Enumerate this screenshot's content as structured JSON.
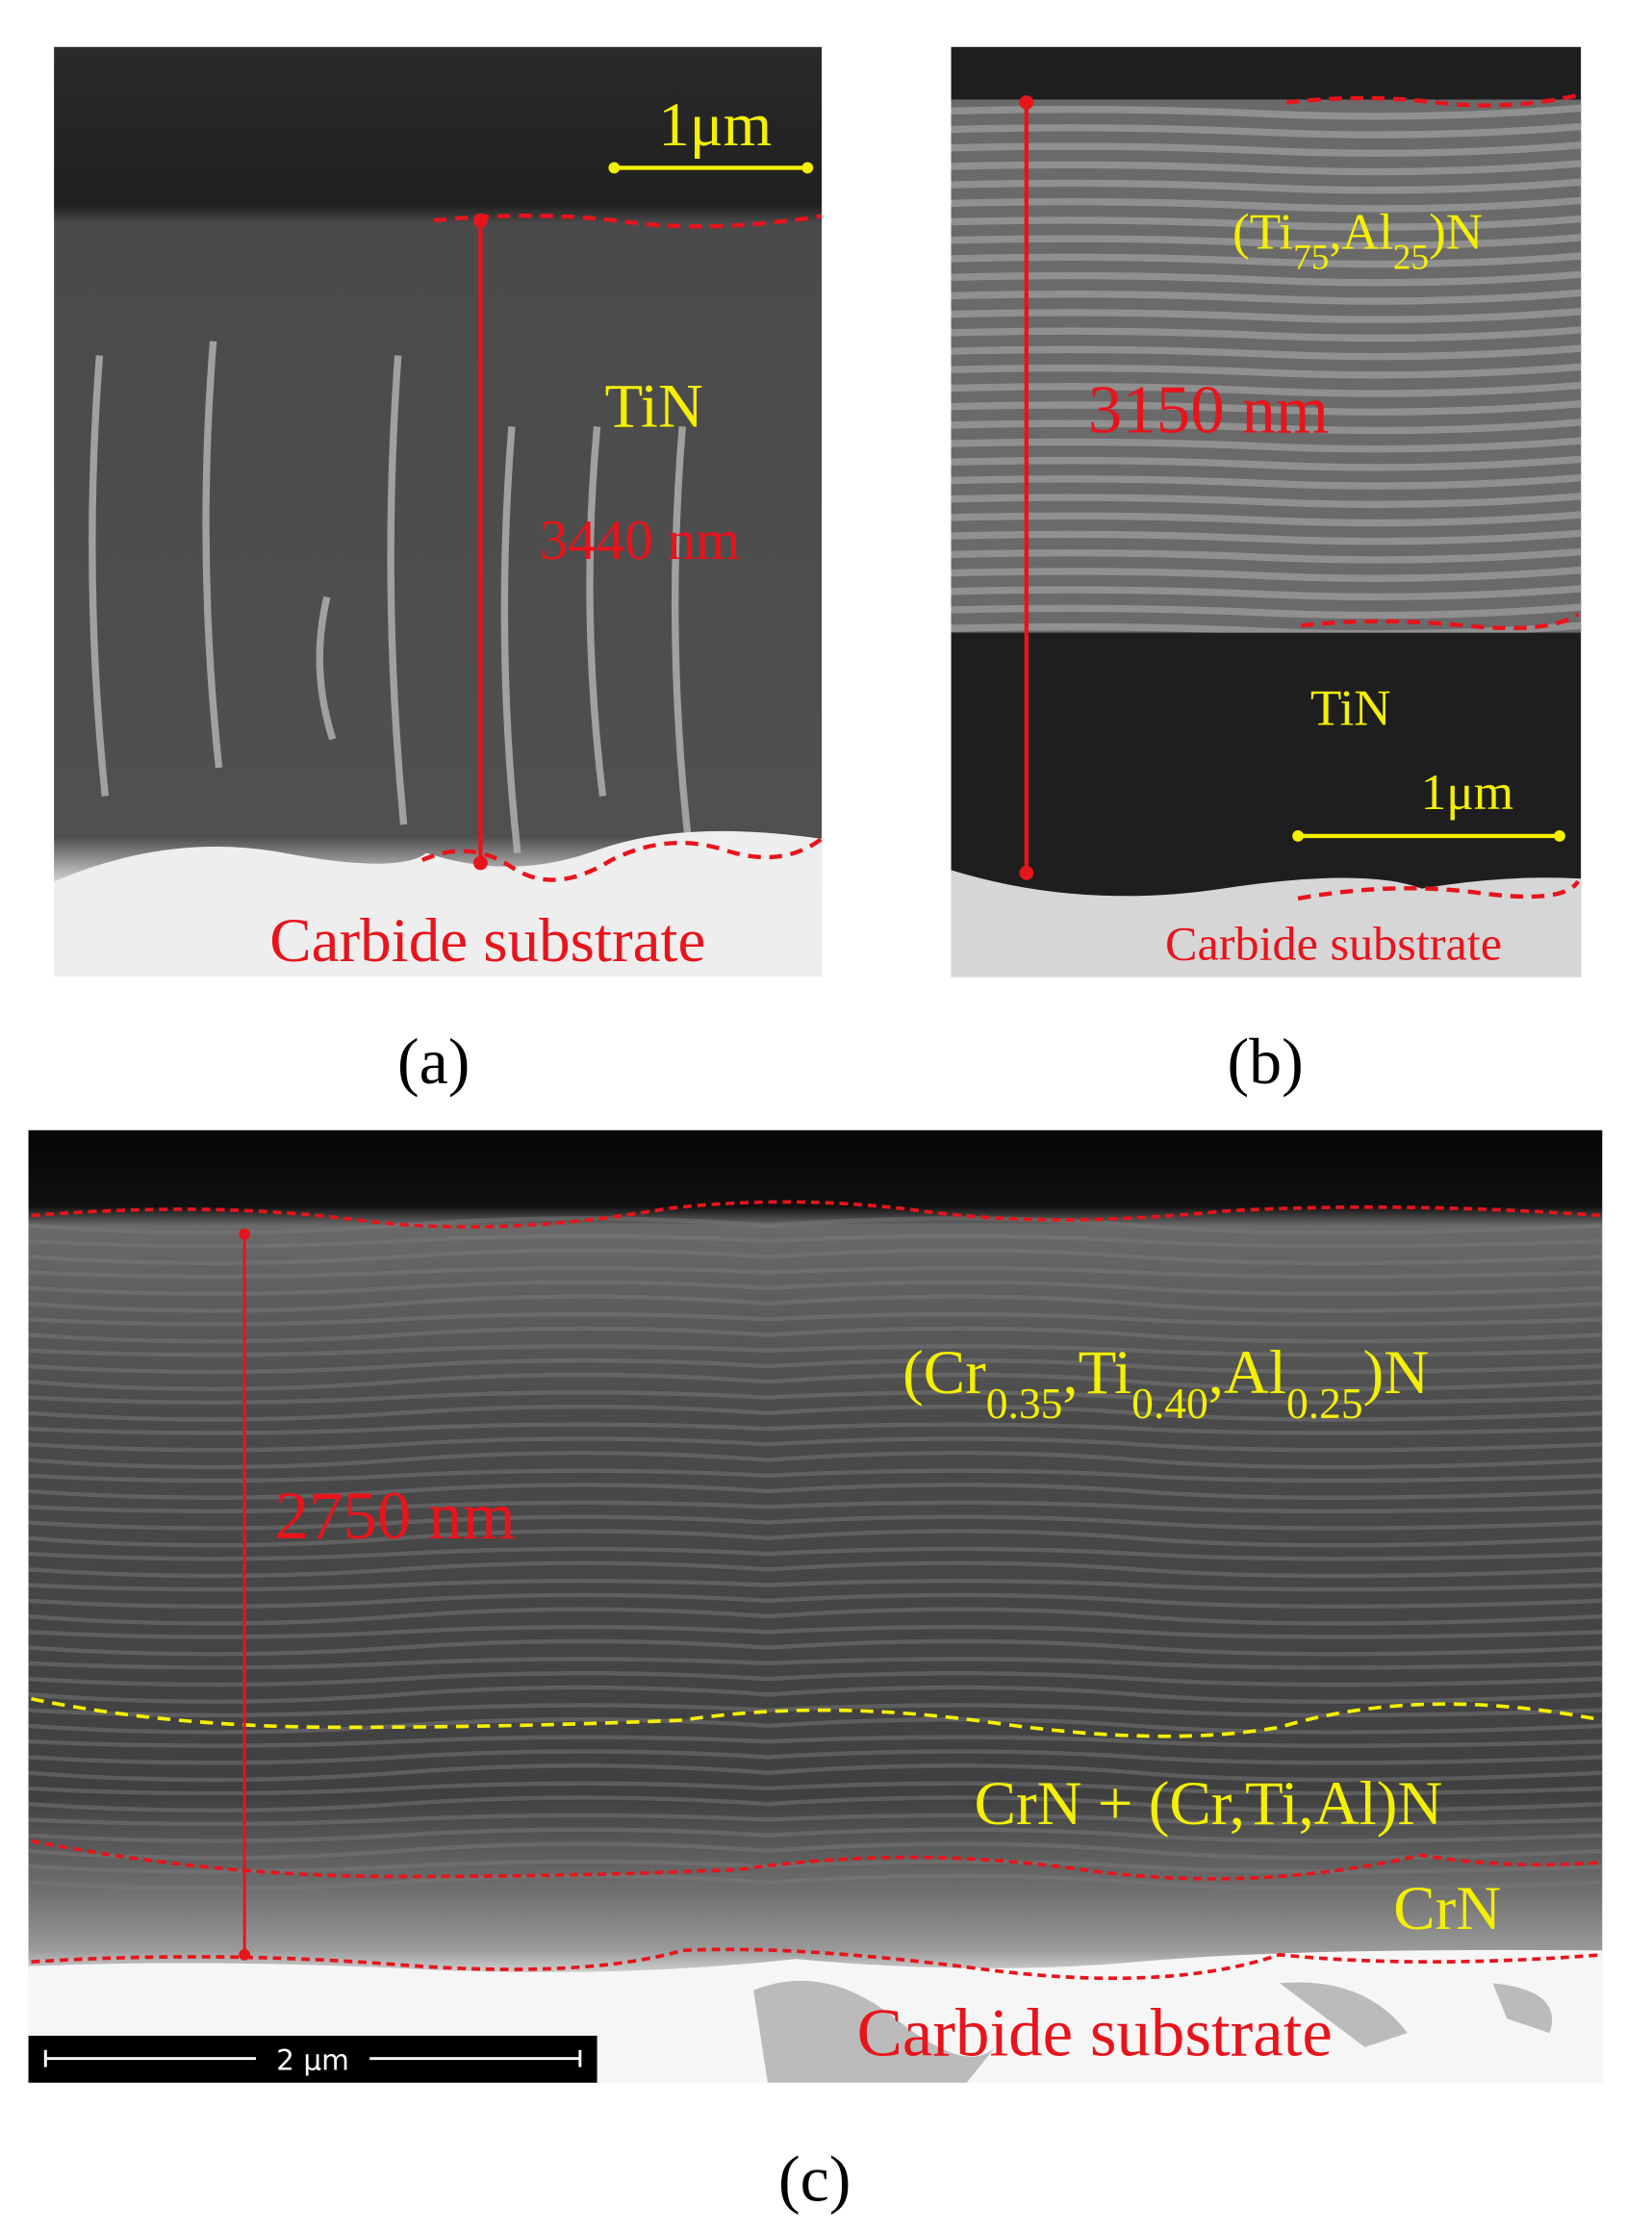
{
  "panels": [
    {
      "caption": "(a)",
      "scale_bar": "1μm",
      "layer": "TiN",
      "thickness": "3440 nm",
      "substrate": "Carbide substrate"
    },
    {
      "caption": "(b)",
      "layer_top": {
        "parts": [
          "(Ti",
          "75",
          ",Al",
          "25",
          ")N"
        ]
      },
      "thickness": "3150 nm",
      "layer": "TiN",
      "scale_bar": "1μm",
      "substrate": "Carbide substrate"
    },
    {
      "caption": "(c)",
      "layer_top": {
        "parts": [
          "(Cr",
          "0.35",
          ",Ti",
          "0.40",
          ",Al",
          "0.25",
          ")N"
        ]
      },
      "thickness": "2750 nm",
      "layer_mid": "CrN + (Cr,Ti,Al)N",
      "layer": "CrN",
      "substrate": "Carbide substrate",
      "scale_bar": "2 μm"
    }
  ]
}
